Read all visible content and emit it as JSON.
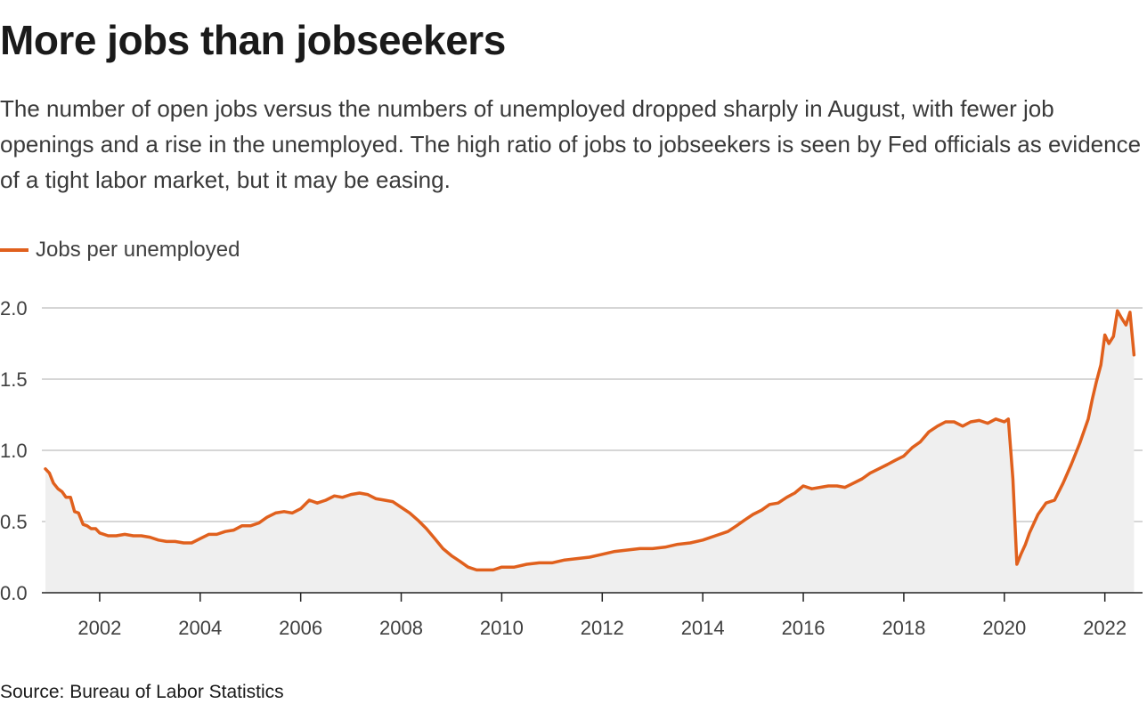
{
  "header": {
    "title": "More jobs than jobseekers",
    "subtitle": "The number of open jobs versus the numbers of unemployed dropped sharply in August, with fewer job openings and a rise in the unemployed. The high ratio of jobs to jobseekers is seen by Fed officials as evidence of a tight labor market, but it may be easing."
  },
  "footer": {
    "source": "Source: Bureau of Labor Statistics"
  },
  "chart_data": {
    "type": "area",
    "title": "More jobs than jobseekers",
    "xlabel": "",
    "ylabel": "",
    "xlim": [
      2000.85,
      2022.75
    ],
    "ylim": [
      0,
      2.0
    ],
    "grid": true,
    "legend_position": "top-left",
    "colors": {
      "line": "#e0601d",
      "area": "#efefef",
      "grid": "#c8c8c8",
      "axis": "#222222"
    },
    "x_ticks": [
      2002,
      2004,
      2006,
      2008,
      2010,
      2012,
      2014,
      2016,
      2018,
      2020,
      2022
    ],
    "x_tick_labels": [
      "2002",
      "2004",
      "2006",
      "2008",
      "2010",
      "2012",
      "2014",
      "2016",
      "2018",
      "2020",
      "2022"
    ],
    "y_ticks": [
      0.0,
      0.5,
      1.0,
      1.5,
      2.0
    ],
    "y_tick_labels": [
      "0.0",
      "0.5",
      "1.0",
      "1.5",
      "2.0"
    ],
    "series": [
      {
        "name": "Jobs per unemployed",
        "x": [
          2000.92,
          2001.0,
          2001.08,
          2001.17,
          2001.25,
          2001.33,
          2001.42,
          2001.5,
          2001.58,
          2001.67,
          2001.75,
          2001.83,
          2001.92,
          2002.0,
          2002.17,
          2002.33,
          2002.5,
          2002.67,
          2002.83,
          2003.0,
          2003.17,
          2003.33,
          2003.5,
          2003.67,
          2003.83,
          2004.0,
          2004.17,
          2004.33,
          2004.5,
          2004.67,
          2004.83,
          2005.0,
          2005.17,
          2005.33,
          2005.5,
          2005.67,
          2005.83,
          2006.0,
          2006.17,
          2006.33,
          2006.5,
          2006.67,
          2006.83,
          2007.0,
          2007.17,
          2007.33,
          2007.5,
          2007.67,
          2007.83,
          2008.0,
          2008.17,
          2008.33,
          2008.5,
          2008.67,
          2008.83,
          2009.0,
          2009.17,
          2009.33,
          2009.5,
          2009.67,
          2009.83,
          2010.0,
          2010.25,
          2010.5,
          2010.75,
          2011.0,
          2011.25,
          2011.5,
          2011.75,
          2012.0,
          2012.25,
          2012.5,
          2012.75,
          2013.0,
          2013.25,
          2013.5,
          2013.75,
          2014.0,
          2014.25,
          2014.5,
          2014.67,
          2014.83,
          2015.0,
          2015.17,
          2015.33,
          2015.5,
          2015.67,
          2015.83,
          2016.0,
          2016.17,
          2016.33,
          2016.5,
          2016.67,
          2016.83,
          2017.0,
          2017.17,
          2017.33,
          2017.5,
          2017.67,
          2017.83,
          2018.0,
          2018.17,
          2018.33,
          2018.5,
          2018.67,
          2018.83,
          2019.0,
          2019.17,
          2019.33,
          2019.5,
          2019.67,
          2019.83,
          2020.0,
          2020.08,
          2020.17,
          2020.25,
          2020.33,
          2020.42,
          2020.5,
          2020.67,
          2020.83,
          2021.0,
          2021.17,
          2021.33,
          2021.5,
          2021.67,
          2021.75,
          2021.83,
          2021.92,
          2022.0,
          2022.08,
          2022.17,
          2022.25,
          2022.33,
          2022.42,
          2022.5,
          2022.58
        ],
        "y": [
          0.87,
          0.84,
          0.77,
          0.73,
          0.71,
          0.67,
          0.67,
          0.57,
          0.56,
          0.48,
          0.47,
          0.45,
          0.45,
          0.42,
          0.4,
          0.4,
          0.41,
          0.4,
          0.4,
          0.39,
          0.37,
          0.36,
          0.36,
          0.35,
          0.35,
          0.38,
          0.41,
          0.41,
          0.43,
          0.44,
          0.47,
          0.47,
          0.49,
          0.53,
          0.56,
          0.57,
          0.56,
          0.59,
          0.65,
          0.63,
          0.65,
          0.68,
          0.67,
          0.69,
          0.7,
          0.69,
          0.66,
          0.65,
          0.64,
          0.6,
          0.56,
          0.51,
          0.45,
          0.38,
          0.31,
          0.26,
          0.22,
          0.18,
          0.16,
          0.16,
          0.16,
          0.18,
          0.18,
          0.2,
          0.21,
          0.21,
          0.23,
          0.24,
          0.25,
          0.27,
          0.29,
          0.3,
          0.31,
          0.31,
          0.32,
          0.34,
          0.35,
          0.37,
          0.4,
          0.43,
          0.47,
          0.51,
          0.55,
          0.58,
          0.62,
          0.63,
          0.67,
          0.7,
          0.75,
          0.73,
          0.74,
          0.75,
          0.75,
          0.74,
          0.77,
          0.8,
          0.84,
          0.87,
          0.9,
          0.93,
          0.96,
          1.02,
          1.06,
          1.13,
          1.17,
          1.2,
          1.2,
          1.17,
          1.2,
          1.21,
          1.19,
          1.22,
          1.2,
          1.22,
          0.8,
          0.2,
          0.27,
          0.34,
          0.42,
          0.55,
          0.63,
          0.65,
          0.77,
          0.9,
          1.05,
          1.22,
          1.36,
          1.48,
          1.6,
          1.81,
          1.75,
          1.8,
          1.98,
          1.93,
          1.88,
          1.97,
          1.67
        ]
      }
    ]
  }
}
